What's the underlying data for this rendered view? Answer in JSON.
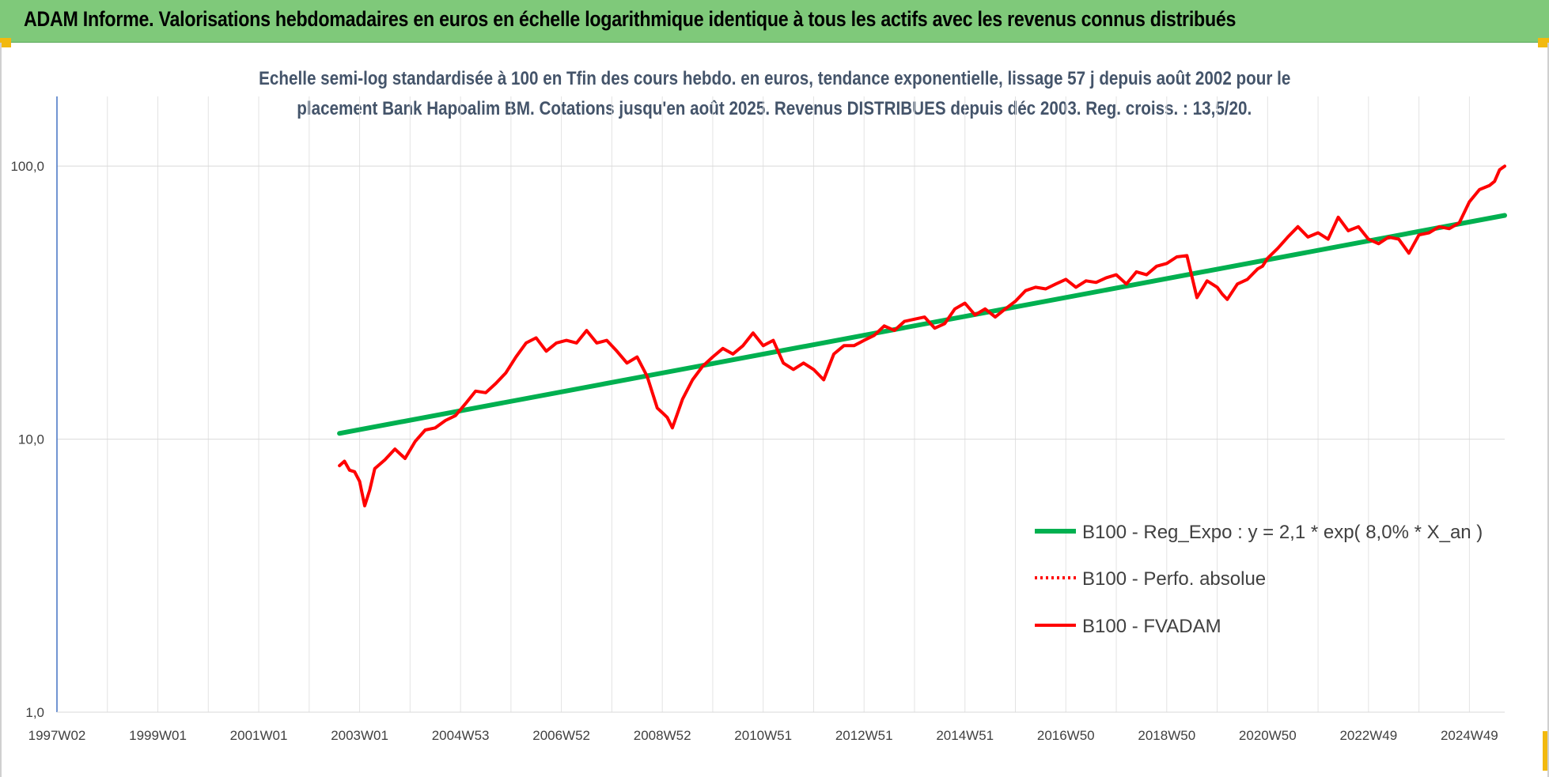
{
  "banner": {
    "title": "ADAM Informe. Valorisations hebdomadaires en euros en échelle logarithmique identique à tous les actifs avec les revenus connus distribués"
  },
  "chart_data": {
    "type": "line",
    "title_line1": "Echelle semi-log standardisée à 100 en Tfin des cours hebdo. en euros, tendance exponentielle, lissage 57 j depuis août 2002 pour le",
    "title_line2": "placement Bank Hapoalim BM. Cotations jusqu'en août 2025. Revenus DISTRIBUES depuis déc 2003. Reg. croiss. : 13,5/20.",
    "y_scale": "log",
    "ylim": [
      1,
      180
    ],
    "y_ticks": [
      1,
      10,
      100
    ],
    "y_tick_labels": [
      "1,0",
      "10,0",
      "100,0"
    ],
    "xlim": [
      1997.0,
      2025.7
    ],
    "x_ticks": [
      {
        "label": "1997W02",
        "year": 1997.0
      },
      {
        "label": "1999W01",
        "year": 1999.0
      },
      {
        "label": "2001W01",
        "year": 2001.0
      },
      {
        "label": "2003W01",
        "year": 2003.0
      },
      {
        "label": "2004W53",
        "year": 2005.0
      },
      {
        "label": "2006W52",
        "year": 2007.0
      },
      {
        "label": "2008W52",
        "year": 2009.0
      },
      {
        "label": "2010W51",
        "year": 2011.0
      },
      {
        "label": "2012W51",
        "year": 2013.0
      },
      {
        "label": "2014W51",
        "year": 2015.0
      },
      {
        "label": "2016W50",
        "year": 2017.0
      },
      {
        "label": "2018W50",
        "year": 2019.0
      },
      {
        "label": "2020W50",
        "year": 2021.0
      },
      {
        "label": "2022W49",
        "year": 2023.0
      },
      {
        "label": "2024W49",
        "year": 2025.0
      }
    ],
    "grid": "vertical and horizontal",
    "legend_position": "right-middle",
    "series": [
      {
        "name": "B100 - Reg_Expo : y = 2,1 * exp( 8,0% *  X_an )",
        "style": "solid-thick",
        "color": "#00b050",
        "x": [
          2002.6,
          2025.7
        ],
        "y": [
          10.5,
          66
        ]
      },
      {
        "name": "B100 - Perfo. absolue",
        "style": "dotted",
        "color": "#ff0000",
        "x": [],
        "y": []
      },
      {
        "name": "B100 - FVADAM",
        "style": "solid",
        "color": "#ff0000",
        "x": [
          2002.6,
          2002.7,
          2002.8,
          2002.9,
          2003.0,
          2003.1,
          2003.2,
          2003.3,
          2003.5,
          2003.7,
          2003.9,
          2004.1,
          2004.3,
          2004.5,
          2004.7,
          2004.9,
          2005.1,
          2005.3,
          2005.5,
          2005.7,
          2005.9,
          2006.1,
          2006.3,
          2006.5,
          2006.7,
          2006.9,
          2007.1,
          2007.3,
          2007.5,
          2007.7,
          2007.9,
          2008.1,
          2008.3,
          2008.5,
          2008.7,
          2008.9,
          2009.0,
          2009.1,
          2009.2,
          2009.4,
          2009.6,
          2009.8,
          2010.0,
          2010.2,
          2010.4,
          2010.6,
          2010.8,
          2011.0,
          2011.2,
          2011.4,
          2011.6,
          2011.8,
          2012.0,
          2012.2,
          2012.4,
          2012.6,
          2012.8,
          2013.0,
          2013.2,
          2013.4,
          2013.6,
          2013.8,
          2014.0,
          2014.2,
          2014.4,
          2014.6,
          2014.8,
          2015.0,
          2015.2,
          2015.4,
          2015.6,
          2015.8,
          2016.0,
          2016.2,
          2016.4,
          2016.6,
          2016.8,
          2017.0,
          2017.2,
          2017.4,
          2017.6,
          2017.8,
          2018.0,
          2018.2,
          2018.4,
          2018.6,
          2018.8,
          2019.0,
          2019.2,
          2019.4,
          2019.6,
          2019.8,
          2020.0,
          2020.1,
          2020.2,
          2020.4,
          2020.6,
          2020.8,
          2020.9,
          2021.0,
          2021.2,
          2021.4,
          2021.6,
          2021.8,
          2022.0,
          2022.2,
          2022.4,
          2022.6,
          2022.8,
          2023.0,
          2023.2,
          2023.4,
          2023.6,
          2023.8,
          2024.0,
          2024.2,
          2024.4,
          2024.6,
          2024.8,
          2025.0,
          2025.2,
          2025.4,
          2025.5,
          2025.6,
          2025.7
        ],
        "y": [
          8.0,
          8.3,
          7.7,
          7.6,
          7.0,
          5.7,
          6.5,
          7.8,
          8.4,
          9.2,
          8.5,
          9.8,
          10.8,
          11.0,
          11.7,
          12.2,
          13.5,
          15.0,
          14.8,
          16.0,
          17.5,
          20.0,
          22.5,
          23.5,
          21.0,
          22.5,
          23.0,
          22.5,
          25.0,
          22.5,
          23.0,
          21.0,
          19.0,
          20.0,
          17.0,
          13.0,
          12.5,
          12.0,
          11.0,
          14.0,
          16.5,
          18.5,
          20.0,
          21.5,
          20.5,
          22.0,
          24.5,
          22.0,
          23.0,
          19.0,
          18.0,
          19.0,
          18.0,
          16.5,
          20.5,
          22.0,
          22.0,
          23.0,
          24.0,
          26.0,
          25.0,
          27.0,
          27.5,
          28.0,
          25.5,
          26.5,
          30.0,
          31.5,
          28.5,
          30.0,
          28.0,
          30.0,
          32.0,
          35.0,
          36.0,
          35.5,
          37.0,
          38.5,
          36.0,
          38.0,
          37.5,
          39.0,
          40.0,
          37.0,
          41.0,
          40.0,
          43.0,
          44.0,
          46.5,
          47.0,
          33.0,
          38.0,
          36.0,
          34.0,
          32.5,
          37.0,
          38.5,
          42.0,
          43.0,
          46.0,
          50.0,
          55.0,
          60.0,
          55.0,
          57.0,
          54.0,
          65.0,
          58.0,
          60.0,
          54.0,
          52.0,
          55.0,
          54.0,
          48.0,
          56.0,
          57.0,
          60.0,
          59.0,
          62.0,
          74.0,
          82.0,
          85.0,
          88.0,
          97.0,
          100.0
        ]
      }
    ]
  }
}
